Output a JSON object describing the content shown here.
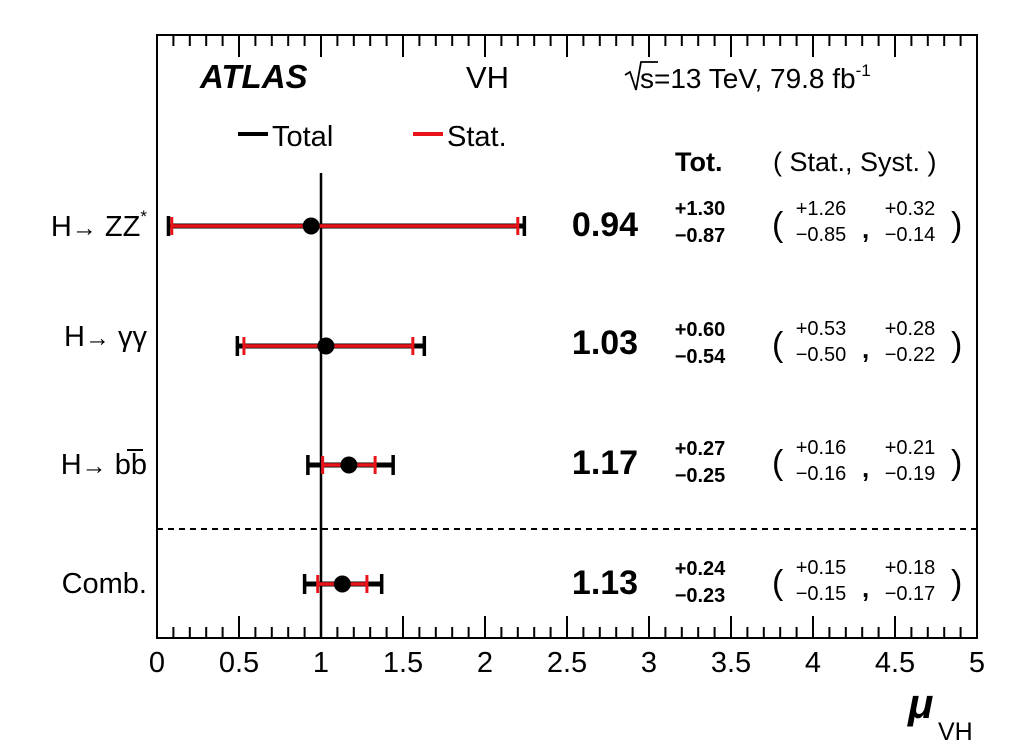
{
  "chart_data": {
    "type": "scatter",
    "experiment": "ATLAS",
    "process": "VH",
    "energy_text": "s=13 TeV, 79.8 fb",
    "energy_sup": "-1",
    "xlabel": "μ",
    "xlabel_sub": "VH",
    "xlim": [
      0,
      5
    ],
    "x_ticks": [
      "0",
      "0.5",
      "1",
      "1.5",
      "2",
      "2.5",
      "3",
      "3.5",
      "4",
      "4.5",
      "5"
    ],
    "reference_line": 1,
    "legend": {
      "placement": "top-left",
      "total": "Total",
      "stat": "Stat."
    },
    "column_headers": {
      "total": "Tot.",
      "breakdown": "( Stat., Syst. )"
    },
    "colors": {
      "total": "#000000",
      "stat": "#e8141a"
    },
    "rows": [
      {
        "label": "H→ ZZ*",
        "label_parts": [
          "H",
          "→",
          " ZZ",
          "*"
        ],
        "value": 0.94,
        "value_text": "0.94",
        "tot_up": "+1.30",
        "tot_dn": "−0.87",
        "stat_up": "+1.26",
        "stat_dn": "−0.85",
        "syst_up": "+0.32",
        "syst_dn": "−0.14",
        "tot_err": [
          0.87,
          1.3
        ],
        "stat_err": [
          0.85,
          1.26
        ]
      },
      {
        "label": "H→ γγ",
        "label_parts": [
          "H",
          "→",
          " γγ",
          ""
        ],
        "value": 1.03,
        "value_text": "1.03",
        "tot_up": "+0.60",
        "tot_dn": "−0.54",
        "stat_up": "+0.53",
        "stat_dn": "−0.50",
        "syst_up": "+0.28",
        "syst_dn": "−0.22",
        "tot_err": [
          0.54,
          0.6
        ],
        "stat_err": [
          0.5,
          0.53
        ]
      },
      {
        "label": "H→ bb̄",
        "label_parts": [
          "H",
          "→",
          " bb",
          ""
        ],
        "value": 1.17,
        "value_text": "1.17",
        "tot_up": "+0.27",
        "tot_dn": "−0.25",
        "stat_up": "+0.16",
        "stat_dn": "−0.16",
        "syst_up": "+0.21",
        "syst_dn": "−0.19",
        "tot_err": [
          0.25,
          0.27
        ],
        "stat_err": [
          0.16,
          0.16
        ]
      },
      {
        "label": "Comb.",
        "label_parts": [
          "Comb.",
          "",
          "",
          ""
        ],
        "value": 1.13,
        "value_text": "1.13",
        "tot_up": "+0.24",
        "tot_dn": "−0.23",
        "stat_up": "+0.15",
        "stat_dn": "−0.15",
        "syst_up": "+0.18",
        "syst_dn": "−0.17",
        "tot_err": [
          0.23,
          0.24
        ],
        "stat_err": [
          0.15,
          0.15
        ]
      }
    ]
  }
}
